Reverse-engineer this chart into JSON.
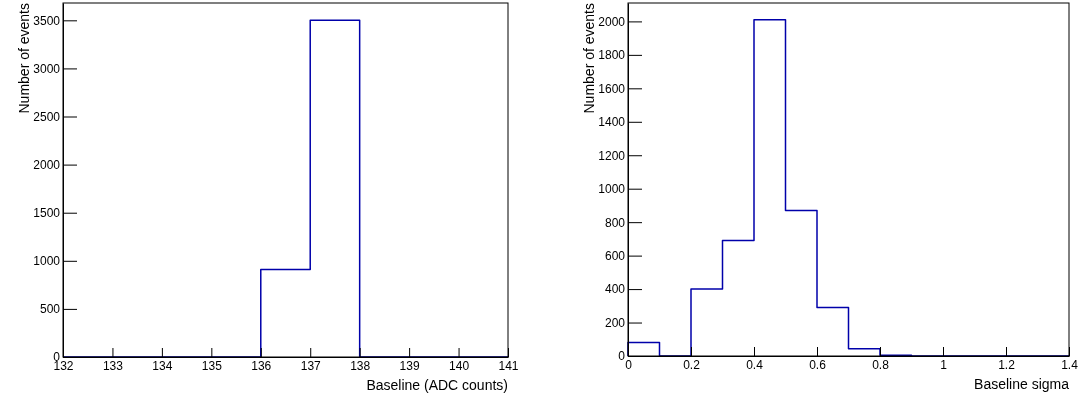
{
  "chart_data": [
    {
      "type": "histogram",
      "xlabel": "Baseline (ADC counts)",
      "ylabel": "Number of events",
      "color": "#0000aa",
      "bins": [
        132,
        133,
        134,
        135,
        136,
        137,
        138,
        139,
        140,
        141
      ],
      "values": [
        0,
        0,
        0,
        0,
        910,
        3500,
        0,
        0,
        0
      ],
      "xlim": [
        132,
        141
      ],
      "ylim": [
        0,
        3680
      ],
      "xticks": [
        132,
        133,
        134,
        135,
        136,
        137,
        138,
        139,
        140,
        141
      ],
      "yticks": [
        0,
        500,
        1000,
        1500,
        2000,
        2500,
        3000,
        3500
      ]
    },
    {
      "type": "histogram",
      "xlabel": "Baseline sigma",
      "ylabel": "Number of events",
      "color": "#0000aa",
      "bins": [
        0,
        0.1,
        0.2,
        0.3,
        0.4,
        0.5,
        0.6,
        0.7,
        0.8,
        0.9,
        1,
        1.1,
        1.2,
        1.3,
        1.4
      ],
      "values": [
        80,
        0,
        400,
        690,
        2010,
        870,
        290,
        44,
        5,
        0,
        0,
        0,
        0,
        0
      ],
      "xlim": [
        0,
        1.4
      ],
      "ylim": [
        0,
        2110
      ],
      "xticks": [
        0,
        0.2,
        0.4,
        0.6,
        0.8,
        1,
        1.2,
        1.4
      ],
      "yticks": [
        0,
        200,
        400,
        600,
        800,
        1000,
        1200,
        1400,
        1600,
        1800,
        2000
      ]
    }
  ]
}
